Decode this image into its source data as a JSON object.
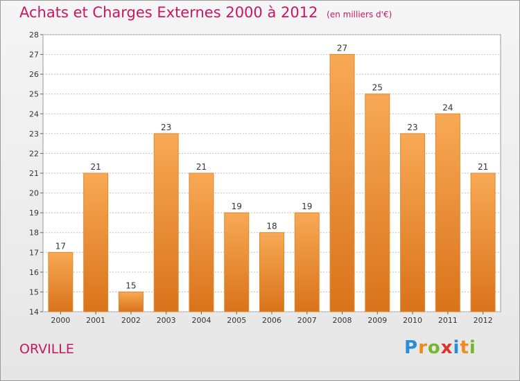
{
  "header": {
    "title": "Achats et Charges Externes 2000 à 2012",
    "unit": "(en milliers d'€)"
  },
  "footer": {
    "commune": "ORVILLE",
    "logo": "Proxiti"
  },
  "colors": {
    "title": "#c8175f",
    "bar_light": "#f8a955",
    "bar_dark": "#d9731b",
    "grid": "#bdbdbd"
  },
  "chart_data": {
    "type": "bar",
    "title": "Achats et Charges Externes 2000 à 2012",
    "subtitle": "(en milliers d'€)",
    "categories": [
      "2000",
      "2001",
      "2002",
      "2003",
      "2004",
      "2005",
      "2006",
      "2007",
      "2008",
      "2009",
      "2010",
      "2011",
      "2012"
    ],
    "values": [
      17,
      21,
      15,
      23,
      21,
      19,
      18,
      19,
      27,
      25,
      23,
      24,
      21
    ],
    "y_ticks": [
      "14",
      "15",
      "16",
      "17",
      "18",
      "19",
      "20",
      "21",
      "22",
      "23",
      "24",
      "25",
      "26",
      "27",
      "28"
    ],
    "ylim": [
      14,
      28
    ],
    "grid": true,
    "xlabel": "",
    "ylabel": ""
  }
}
